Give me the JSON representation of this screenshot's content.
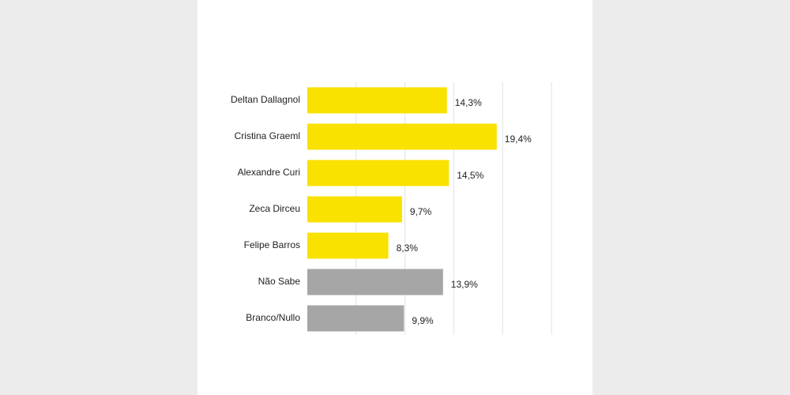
{
  "chart_data": {
    "type": "barh",
    "categories": [
      "Deltan Dallagnol",
      "Cristina Graeml",
      "Alexandre Curi",
      "Zeca Dirceu",
      "Felipe Barros",
      "Não Sabe",
      "Branco/Nullo"
    ],
    "values": [
      14.3,
      19.4,
      14.5,
      9.7,
      8.3,
      13.9,
      9.9
    ],
    "value_labels": [
      "14,3%",
      "19,4%",
      "14,5%",
      "9,7%",
      "8,3%",
      "13,9%",
      "9,9%"
    ],
    "colors": [
      "#f9e100",
      "#f9e100",
      "#f9e100",
      "#f9e100",
      "#f9e100",
      "#a6a6a6",
      "#a6a6a6"
    ],
    "xlim": [
      0,
      25
    ],
    "xticks": [
      5,
      10,
      15,
      20,
      25
    ],
    "grid": true
  }
}
